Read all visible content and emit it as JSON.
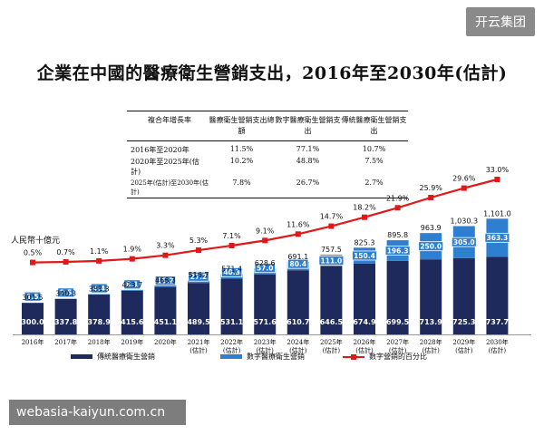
{
  "watermark_top": "开云集团",
  "watermark_bottom": "webasia-kaiyun.com.cn",
  "title": "企業在中國的醫療衛生營銷支出，2016年至2030年(估計)",
  "unit_label": "人民幣十億元",
  "table": {
    "headers": [
      "複合年增長率",
      "醫療衛生營銷支出總額",
      "數字醫療衛生營銷支出",
      "傳統醫療衛生營銷支出"
    ],
    "rows": [
      [
        "2016年至2020年",
        "11.5%",
        "77.1%",
        "10.7%"
      ],
      [
        "2020年至2025年(估計)",
        "10.2%",
        "48.8%",
        "7.5%"
      ],
      [
        "2025年(估計)至2030年(估計)",
        "7.8%",
        "26.7%",
        "2.7%"
      ]
    ]
  },
  "legend": {
    "traditional": "傳統醫療衛生營銷",
    "digital": "數字醫療衛生營銷",
    "percent": "數字營銷的百分比"
  },
  "colors": {
    "traditional": "#1f2a5c",
    "digital": "#2f7fd0",
    "line": "#e01818"
  },
  "chart_data": {
    "type": "bar",
    "stacked": true,
    "categories": [
      "2016年",
      "2017年",
      "2018年",
      "2019年",
      "2020年",
      "2021年(估計)",
      "2022年(估計)",
      "2023年(估計)",
      "2024年(估計)",
      "2025年(估計)",
      "2026年(估計)",
      "2027年(估計)",
      "2028年(估計)",
      "2029年(估計)",
      "2030年(估計)"
    ],
    "category_lines": [
      [
        "2016年"
      ],
      [
        "2017年"
      ],
      [
        "2018年"
      ],
      [
        "2019年"
      ],
      [
        "2020年"
      ],
      [
        "2021年",
        "(估計)"
      ],
      [
        "2022年",
        "(估計)"
      ],
      [
        "2023年",
        "(估計)"
      ],
      [
        "2024年",
        "(估計)"
      ],
      [
        "2025年",
        "(估計)"
      ],
      [
        "2026年",
        "(估計)"
      ],
      [
        "2027年",
        "(估計)"
      ],
      [
        "2028年",
        "(估計)"
      ],
      [
        "2029年",
        "(估計)"
      ],
      [
        "2030年",
        "(估計)"
      ]
    ],
    "series": [
      {
        "name": "傳統醫療衛生營銷",
        "values": [
          300.0,
          337.8,
          378.9,
          415.6,
          451.1,
          489.5,
          531.1,
          571.6,
          610.7,
          646.5,
          674.9,
          699.5,
          713.9,
          725.3,
          737.7
        ]
      },
      {
        "name": "數字醫療衛生營銷",
        "values": [
          1.5,
          2.5,
          4.4,
          8.1,
          15.2,
          27.2,
          40.3,
          57.0,
          80.4,
          111.0,
          150.4,
          196.3,
          250.0,
          305.0,
          363.3
        ]
      }
    ],
    "totals": [
      301.5,
      340.3,
      383.3,
      423.7,
      466.3,
      516.7,
      571.4,
      628.6,
      691.1,
      757.5,
      825.3,
      895.8,
      963.9,
      1030.3,
      1101.0
    ],
    "line": {
      "name": "數字營銷的百分比",
      "values": [
        0.5,
        0.7,
        1.1,
        1.9,
        3.3,
        5.3,
        7.1,
        9.1,
        11.6,
        14.7,
        18.2,
        21.9,
        25.9,
        29.6,
        33.0
      ]
    },
    "value_labels": {
      "traditional": [
        "300.0",
        "337.8",
        "378.9",
        "415.6",
        "451.1",
        "489.5",
        "531.1",
        "571.6",
        "610.7",
        "646.5",
        "674.9",
        "699.5",
        "713.9",
        "725.3",
        "737.7"
      ],
      "digital": [
        "1.5",
        "2.5",
        "4.4",
        "8.1",
        "15.2",
        "27.2",
        "40.3",
        "57.0",
        "80.4",
        "111.0",
        "150.4",
        "196.3",
        "250.0",
        "305.0",
        "363.3"
      ],
      "totals": [
        "301.5",
        "340.3",
        "383.3",
        "423.7",
        "466.3",
        "516.7",
        "571.4",
        "628.6",
        "691.1",
        "757.5",
        "825.3",
        "895.8",
        "963.9",
        "1,030.3",
        "1,101.0"
      ],
      "percent": [
        "0.5%",
        "0.7%",
        "1.1%",
        "1.9%",
        "3.3%",
        "5.3%",
        "7.1%",
        "9.1%",
        "11.6%",
        "14.7%",
        "18.2%",
        "21.9%",
        "25.9%",
        "29.6%",
        "33.0%"
      ]
    }
  }
}
